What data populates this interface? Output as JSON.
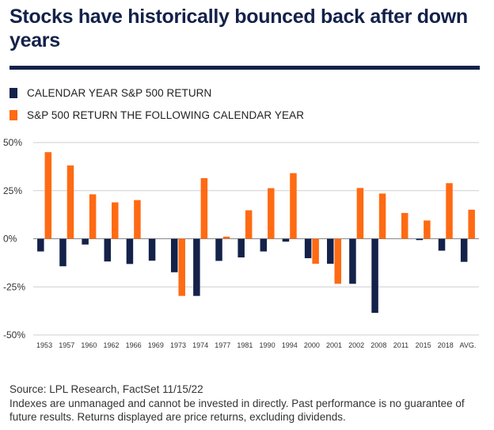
{
  "title": "Stocks have historically bounced back after down years",
  "legend": [
    {
      "label": "CALENDAR YEAR S&P 500 RETURN",
      "color": "#14224a"
    },
    {
      "label": "S&P 500 RETURN THE FOLLOWING CALENDAR YEAR",
      "color": "#ff6a13"
    }
  ],
  "chart_data": {
    "type": "bar",
    "categories": [
      "1953",
      "1957",
      "1960",
      "1962",
      "1966",
      "1969",
      "1973",
      "1974",
      "1977",
      "1981",
      "1990",
      "1994",
      "2000",
      "2001",
      "2002",
      "2008",
      "2011",
      "2015",
      "2018",
      "AVG."
    ],
    "series": [
      {
        "name": "CALENDAR YEAR S&P 500 RETURN",
        "color": "#14224a",
        "values": [
          -6.6,
          -14.3,
          -3.0,
          -11.8,
          -13.1,
          -11.4,
          -17.4,
          -29.7,
          -11.5,
          -9.7,
          -6.6,
          -1.5,
          -10.1,
          -13.0,
          -23.4,
          -38.5,
          0.0,
          -0.7,
          -6.2,
          -12.0
        ]
      },
      {
        "name": "S&P 500 RETURN THE FOLLOWING CALENDAR YEAR",
        "color": "#ff6a13",
        "values": [
          45.0,
          38.1,
          23.1,
          18.9,
          20.1,
          0.0,
          -29.7,
          31.5,
          1.1,
          14.8,
          26.3,
          34.1,
          -13.0,
          -23.4,
          26.4,
          23.5,
          13.4,
          9.5,
          28.9,
          15.1
        ]
      }
    ],
    "yticks": [
      50,
      25,
      0,
      -25,
      -50
    ],
    "ytick_labels": [
      "50%",
      "25%",
      "0%",
      "-25%",
      "-50%"
    ],
    "ylim": [
      -50,
      50
    ],
    "grid": true
  },
  "footer": {
    "source": "Source: LPL Research, FactSet 11/15/22",
    "disclaimer": "Indexes are unmanaged and cannot be invested in directly. Past performance is no guarantee of future results. Returns displayed are price returns, excluding dividends."
  }
}
